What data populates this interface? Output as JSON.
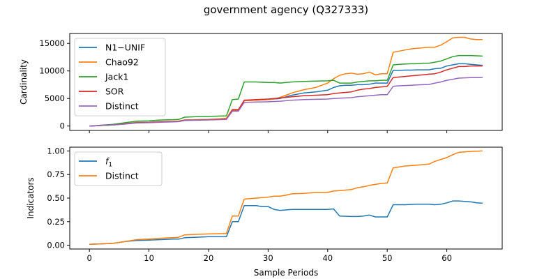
{
  "figure": {
    "title": "government agency (Q327333)",
    "xlabel": "Sample Periods"
  },
  "chart_data": [
    {
      "type": "line",
      "ylabel": "Cardinality",
      "xlim": [
        -3.3,
        69.3
      ],
      "ylim": [
        -800,
        16800
      ],
      "xticks": [
        0,
        10,
        20,
        30,
        40,
        50,
        60
      ],
      "yticks": [
        0,
        5000,
        10000,
        15000
      ],
      "ytick_labels": [
        "0",
        "5000",
        "10000",
        "15000"
      ],
      "legend_position": "upper-left",
      "grid": false,
      "series": [
        {
          "name": "N1−UNIF",
          "color": "#1f77b4",
          "x": [
            0,
            2,
            4,
            6,
            8,
            10,
            12,
            14,
            15,
            16,
            18,
            20,
            23,
            24,
            25,
            26,
            28,
            30,
            31,
            32,
            33,
            34,
            35,
            36,
            38,
            40,
            41,
            42,
            43,
            44,
            45,
            46,
            47,
            48,
            49,
            50,
            51,
            52,
            53,
            54,
            55,
            56,
            57,
            58,
            59,
            60,
            61,
            62,
            63,
            64,
            65,
            66
          ],
          "y": [
            0,
            100,
            200,
            400,
            650,
            700,
            800,
            850,
            900,
            1100,
            1150,
            1200,
            1300,
            3000,
            3000,
            4600,
            4700,
            4800,
            4900,
            5000,
            5300,
            5600,
            5800,
            6000,
            6200,
            6500,
            7000,
            7300,
            7400,
            7400,
            7500,
            7500,
            7600,
            7800,
            7800,
            7800,
            10100,
            10100,
            10150,
            10150,
            10200,
            10200,
            10200,
            10400,
            10500,
            10900,
            11100,
            11300,
            11300,
            11200,
            11100,
            11000
          ]
        },
        {
          "name": "Chao92",
          "color": "#ff7f0e",
          "x": [
            0,
            2,
            4,
            6,
            8,
            10,
            12,
            14,
            15,
            16,
            18,
            20,
            23,
            24,
            25,
            26,
            28,
            30,
            31,
            32,
            33,
            34,
            35,
            36,
            38,
            40,
            41,
            42,
            43,
            44,
            45,
            46,
            47,
            48,
            49,
            50,
            51,
            52,
            53,
            54,
            55,
            56,
            57,
            58,
            59,
            60,
            61,
            62,
            63,
            64,
            65,
            66
          ],
          "y": [
            0,
            100,
            200,
            400,
            650,
            700,
            800,
            850,
            900,
            1100,
            1150,
            1200,
            1400,
            3000,
            3000,
            4600,
            4700,
            4800,
            4900,
            5200,
            5600,
            6000,
            6300,
            6600,
            7000,
            7800,
            8600,
            9200,
            9500,
            9600,
            9400,
            9500,
            9800,
            9300,
            9500,
            9500,
            13400,
            13600,
            13800,
            14000,
            14100,
            14200,
            14300,
            14300,
            14700,
            15300,
            16000,
            16100,
            16100,
            15800,
            15700,
            15700
          ]
        },
        {
          "name": "Jack1",
          "color": "#2ca02c",
          "x": [
            0,
            2,
            4,
            6,
            8,
            10,
            12,
            14,
            15,
            16,
            18,
            20,
            23,
            24,
            25,
            26,
            28,
            30,
            31,
            32,
            33,
            34,
            35,
            36,
            38,
            40,
            41,
            42,
            43,
            44,
            45,
            46,
            47,
            48,
            49,
            50,
            51,
            52,
            53,
            54,
            55,
            56,
            57,
            58,
            59,
            60,
            61,
            62,
            63,
            64,
            65,
            66
          ],
          "y": [
            0,
            150,
            300,
            600,
            900,
            950,
            1100,
            1150,
            1200,
            1600,
            1700,
            1750,
            1850,
            4800,
            4900,
            8000,
            8000,
            7900,
            7900,
            7800,
            7900,
            8000,
            8050,
            8100,
            8150,
            8200,
            8300,
            7800,
            7800,
            7800,
            8000,
            8100,
            8200,
            8200,
            8300,
            8300,
            11100,
            11200,
            11250,
            11300,
            11300,
            11400,
            11400,
            11600,
            11800,
            12200,
            12600,
            12800,
            12800,
            12800,
            12750,
            12700
          ]
        },
        {
          "name": "SOR",
          "color": "#d62728",
          "x": [
            0,
            2,
            4,
            6,
            8,
            10,
            12,
            14,
            15,
            16,
            18,
            20,
            23,
            24,
            25,
            26,
            28,
            30,
            31,
            32,
            33,
            34,
            35,
            36,
            38,
            40,
            41,
            42,
            43,
            44,
            45,
            46,
            47,
            48,
            49,
            50,
            51,
            52,
            53,
            54,
            55,
            56,
            57,
            58,
            59,
            60,
            61,
            62,
            63,
            64,
            65,
            66
          ],
          "y": [
            0,
            100,
            200,
            400,
            600,
            650,
            750,
            800,
            850,
            1050,
            1100,
            1150,
            1250,
            2900,
            2900,
            4700,
            4800,
            4900,
            5000,
            5100,
            5200,
            5300,
            5400,
            5500,
            5600,
            5700,
            5900,
            6000,
            6100,
            6200,
            6500,
            6700,
            6800,
            7000,
            7100,
            7200,
            8800,
            8900,
            9000,
            9100,
            9200,
            9300,
            9400,
            9500,
            9800,
            10200,
            10500,
            10800,
            10800,
            10900,
            10900,
            10900
          ]
        },
        {
          "name": "Distinct",
          "color": "#9467bd",
          "x": [
            0,
            2,
            4,
            6,
            8,
            10,
            12,
            14,
            15,
            16,
            18,
            20,
            23,
            24,
            25,
            26,
            28,
            30,
            31,
            32,
            33,
            34,
            35,
            36,
            38,
            40,
            41,
            42,
            43,
            44,
            45,
            46,
            47,
            48,
            49,
            50,
            51,
            52,
            53,
            54,
            55,
            56,
            57,
            58,
            59,
            60,
            61,
            62,
            63,
            64,
            65,
            66
          ],
          "y": [
            0,
            100,
            200,
            350,
            550,
            600,
            700,
            750,
            800,
            1000,
            1050,
            1100,
            1200,
            2700,
            2700,
            4300,
            4350,
            4400,
            4450,
            4500,
            4600,
            4700,
            4750,
            4800,
            4850,
            4900,
            5000,
            5050,
            5100,
            5150,
            5300,
            5400,
            5500,
            5600,
            5700,
            5700,
            7200,
            7300,
            7350,
            7400,
            7450,
            7500,
            7550,
            7800,
            8000,
            8300,
            8500,
            8700,
            8750,
            8800,
            8800,
            8800
          ]
        }
      ]
    },
    {
      "type": "line",
      "ylabel": "Indicators",
      "xlim": [
        -3.3,
        69.3
      ],
      "ylim": [
        -0.04,
        1.04
      ],
      "xticks": [
        0,
        10,
        20,
        30,
        40,
        50,
        60
      ],
      "xtick_labels": [
        "0",
        "10",
        "20",
        "30",
        "40",
        "50",
        "60"
      ],
      "yticks": [
        0,
        0.25,
        0.5,
        0.75,
        1.0
      ],
      "ytick_labels": [
        "0.00",
        "0.25",
        "0.50",
        "0.75",
        "1.00"
      ],
      "legend_position": "upper-left",
      "grid": false,
      "series": [
        {
          "name": "f1",
          "color": "#1f77b4",
          "x": [
            0,
            2,
            4,
            6,
            8,
            10,
            12,
            14,
            15,
            16,
            18,
            20,
            23,
            24,
            25,
            26,
            28,
            29,
            30,
            31,
            32,
            34,
            36,
            38,
            40,
            41,
            42,
            44,
            45,
            46,
            47,
            48,
            49,
            50,
            51,
            53,
            55,
            57,
            58,
            59,
            60,
            61,
            62,
            63,
            64,
            65,
            66
          ],
          "y": [
            0.01,
            0.015,
            0.02,
            0.04,
            0.05,
            0.055,
            0.06,
            0.065,
            0.065,
            0.08,
            0.085,
            0.09,
            0.09,
            0.25,
            0.25,
            0.42,
            0.42,
            0.41,
            0.41,
            0.38,
            0.37,
            0.38,
            0.38,
            0.38,
            0.38,
            0.385,
            0.31,
            0.305,
            0.305,
            0.31,
            0.32,
            0.3,
            0.3,
            0.3,
            0.43,
            0.43,
            0.435,
            0.435,
            0.43,
            0.435,
            0.45,
            0.47,
            0.47,
            0.465,
            0.46,
            0.45,
            0.445
          ]
        },
        {
          "name": "Distinct",
          "color": "#ff7f0e",
          "x": [
            0,
            2,
            4,
            6,
            8,
            10,
            12,
            14,
            15,
            16,
            18,
            20,
            23,
            24,
            25,
            26,
            28,
            30,
            31,
            32,
            33,
            34,
            36,
            38,
            40,
            41,
            42,
            44,
            45,
            46,
            47,
            48,
            49,
            50,
            51,
            53,
            55,
            57,
            58,
            59,
            60,
            61,
            62,
            63,
            64,
            65,
            66
          ],
          "y": [
            0.01,
            0.015,
            0.02,
            0.04,
            0.06,
            0.065,
            0.075,
            0.08,
            0.085,
            0.11,
            0.115,
            0.12,
            0.125,
            0.31,
            0.31,
            0.49,
            0.5,
            0.51,
            0.52,
            0.52,
            0.53,
            0.545,
            0.55,
            0.56,
            0.56,
            0.575,
            0.58,
            0.59,
            0.61,
            0.62,
            0.635,
            0.645,
            0.655,
            0.66,
            0.82,
            0.84,
            0.85,
            0.86,
            0.89,
            0.91,
            0.93,
            0.96,
            0.985,
            0.99,
            0.995,
            0.998,
            1.0
          ]
        }
      ]
    }
  ]
}
